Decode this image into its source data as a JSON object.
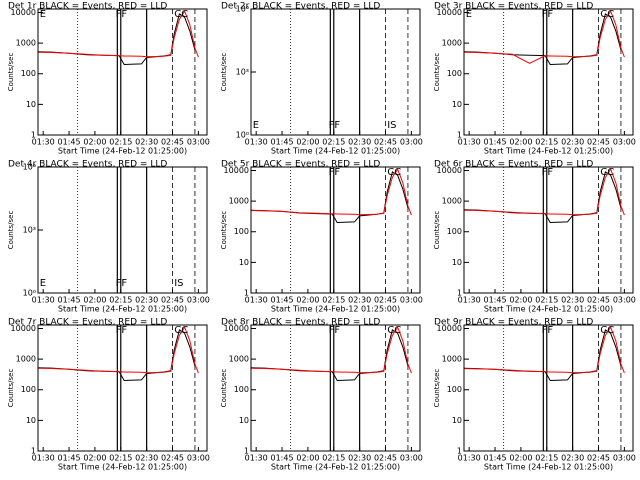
{
  "chart_data": [
    {
      "type": "line",
      "title": "Det 1r BLACK = Events, RED = LLD",
      "xlabel": "Start Time (24-Feb-12 01:25:00)",
      "ylabel": "Counts/sec",
      "log": true,
      "xlim": [
        "01:27",
        "03:05"
      ],
      "xticks": [
        "01:30",
        "01:45",
        "02:00",
        "02:15",
        "02:30",
        "02:45",
        "03:00"
      ],
      "ylim": [
        1,
        13000
      ],
      "yticks": [
        1,
        10,
        100,
        1000,
        10000
      ],
      "x": [
        "01:27",
        "01:35",
        "01:45",
        "01:55",
        "02:05",
        "02:14",
        "02:17",
        "02:27",
        "02:30",
        "02:40",
        "02:44",
        "02:46",
        "02:49",
        "02:52",
        "02:55",
        "02:58",
        "03:00"
      ],
      "series": [
        {
          "name": "BLACK = Events",
          "color": "#000000",
          "values": [
            520,
            510,
            470,
            420,
            400,
            390,
            200,
            210,
            340,
            380,
            420,
            2000,
            9000,
            7000,
            2500,
            600,
            null
          ]
        },
        {
          "name": "RED = LLD",
          "color": "#ff0000",
          "values": [
            500,
            495,
            470,
            430,
            400,
            385,
            380,
            370,
            360,
            370,
            400,
            1500,
            6000,
            11000,
            4000,
            700,
            350
          ]
        }
      ],
      "vlines": [
        {
          "x": "01:50",
          "style": "dotted"
        },
        {
          "x": "02:13",
          "style": "solid"
        },
        {
          "x": "02:15",
          "style": "solid"
        },
        {
          "x": "02:30",
          "style": "solid"
        },
        {
          "x": "02:45",
          "style": "dashed"
        },
        {
          "x": "02:58",
          "style": "dashed"
        }
      ],
      "annotations": [
        {
          "text": "E",
          "x": "01:28",
          "pos": "top"
        },
        {
          "text": "FF",
          "x": "02:12",
          "pos": "top"
        },
        {
          "text": "CC",
          "x": "02:46",
          "pos": "top"
        }
      ]
    },
    {
      "type": "line",
      "title": "Det 2r BLACK = Events, RED = LLD",
      "xlabel": "Start Time (24-Feb-12 01:25:00)",
      "ylabel": "Counts/sec",
      "log": true,
      "xlim": [
        "01:27",
        "03:05"
      ],
      "xticks": [
        "01:30",
        "01:45",
        "02:00",
        "02:15",
        "02:30",
        "02:45",
        "03:00"
      ],
      "ylim": [
        1,
        1000000
      ],
      "yticks": [
        {
          "value": 1,
          "label": "10⁰"
        },
        {
          "value": 1000,
          "label": "10³"
        },
        {
          "value": 1000000,
          "label": "10⁶"
        }
      ],
      "x": [],
      "series": [],
      "vlines": [
        {
          "x": "01:50",
          "style": "dotted"
        },
        {
          "x": "02:13",
          "style": "solid"
        },
        {
          "x": "02:15",
          "style": "solid"
        },
        {
          "x": "02:30",
          "style": "solid"
        },
        {
          "x": "02:45",
          "style": "dashed"
        },
        {
          "x": "02:58",
          "style": "dashed"
        }
      ],
      "annotations": [
        {
          "text": "E",
          "x": "01:28",
          "pos": "bottom"
        },
        {
          "text": "FF",
          "x": "02:12",
          "pos": "bottom"
        },
        {
          "text": "IS",
          "x": "02:46",
          "pos": "bottom"
        }
      ]
    },
    {
      "type": "line",
      "title": "Det 3r BLACK = Events, RED = LLD",
      "xlabel": "Start Time (24-Feb-12 01:25:00)",
      "ylabel": "Counts/sec",
      "log": true,
      "xlim": [
        "01:27",
        "03:05"
      ],
      "xticks": [
        "01:30",
        "01:45",
        "02:00",
        "02:15",
        "02:30",
        "02:45",
        "03:00"
      ],
      "ylim": [
        1,
        13000
      ],
      "yticks": [
        1,
        10,
        100,
        1000,
        10000
      ],
      "x": [
        "01:27",
        "01:35",
        "01:45",
        "01:55",
        "02:05",
        "02:14",
        "02:17",
        "02:27",
        "02:30",
        "02:40",
        "02:44",
        "02:46",
        "02:49",
        "02:52",
        "02:55",
        "02:58",
        "03:00"
      ],
      "series": [
        {
          "name": "BLACK = Events",
          "color": "#000000",
          "values": [
            520,
            510,
            470,
            420,
            400,
            390,
            200,
            210,
            340,
            380,
            420,
            2000,
            9000,
            7000,
            2500,
            600,
            null
          ]
        },
        {
          "name": "RED = LLD",
          "color": "#ff0000",
          "values": [
            500,
            495,
            470,
            430,
            220,
            385,
            380,
            370,
            360,
            370,
            400,
            1500,
            6000,
            11000,
            4000,
            700,
            350
          ]
        }
      ],
      "vlines": [
        {
          "x": "01:50",
          "style": "dotted"
        },
        {
          "x": "02:13",
          "style": "solid"
        },
        {
          "x": "02:15",
          "style": "solid"
        },
        {
          "x": "02:30",
          "style": "solid"
        },
        {
          "x": "02:45",
          "style": "dashed"
        },
        {
          "x": "02:58",
          "style": "dashed"
        }
      ],
      "annotations": [
        {
          "text": "E",
          "x": "01:28",
          "pos": "top"
        },
        {
          "text": "FF",
          "x": "02:12",
          "pos": "top"
        },
        {
          "text": "CC",
          "x": "02:46",
          "pos": "top"
        }
      ]
    },
    {
      "type": "line",
      "title": "Det 4r BLACK = Events, RED = LLD",
      "xlabel": "Start Time (24-Feb-12 01:25:00)",
      "ylabel": "Counts/sec",
      "log": true,
      "xlim": [
        "01:27",
        "03:05"
      ],
      "xticks": [
        "01:30",
        "01:45",
        "02:00",
        "02:15",
        "02:30",
        "02:45",
        "03:00"
      ],
      "ylim": [
        1,
        1000000
      ],
      "yticks": [
        {
          "value": 1,
          "label": "10⁰"
        },
        {
          "value": 1000,
          "label": "10³"
        },
        {
          "value": 1000000,
          "label": "10⁶"
        }
      ],
      "x": [],
      "series": [],
      "vlines": [
        {
          "x": "01:50",
          "style": "dotted"
        },
        {
          "x": "02:13",
          "style": "solid"
        },
        {
          "x": "02:15",
          "style": "solid"
        },
        {
          "x": "02:30",
          "style": "solid"
        },
        {
          "x": "02:45",
          "style": "dashed"
        },
        {
          "x": "02:58",
          "style": "dashed"
        }
      ],
      "annotations": [
        {
          "text": "E",
          "x": "01:28",
          "pos": "bottom"
        },
        {
          "text": "FF",
          "x": "02:12",
          "pos": "bottom"
        },
        {
          "text": "IS",
          "x": "02:46",
          "pos": "bottom"
        }
      ]
    },
    {
      "type": "line",
      "title": "Det 5r BLACK = Events, RED = LLD",
      "xlabel": "Start Time (24-Feb-12 01:25:00)",
      "ylabel": "Counts/sec",
      "log": true,
      "xlim": [
        "01:27",
        "03:05"
      ],
      "xticks": [
        "01:30",
        "01:45",
        "02:00",
        "02:15",
        "02:30",
        "02:45",
        "03:00"
      ],
      "ylim": [
        1,
        13000
      ],
      "yticks": [
        1,
        10,
        100,
        1000,
        10000
      ],
      "x": [
        "01:27",
        "01:35",
        "01:45",
        "01:55",
        "02:05",
        "02:14",
        "02:17",
        "02:27",
        "02:30",
        "02:40",
        "02:44",
        "02:46",
        "02:49",
        "02:52",
        "02:55",
        "02:58",
        "03:00"
      ],
      "series": [
        {
          "name": "BLACK = Events",
          "color": "#000000",
          "values": [
            500,
            490,
            460,
            410,
            390,
            380,
            200,
            210,
            330,
            370,
            410,
            2000,
            9000,
            7000,
            2500,
            600,
            null
          ]
        },
        {
          "name": "RED = LLD",
          "color": "#ff0000",
          "values": [
            490,
            480,
            460,
            420,
            400,
            385,
            380,
            370,
            360,
            370,
            400,
            1500,
            6000,
            11000,
            4000,
            700,
            350
          ]
        }
      ],
      "vlines": [
        {
          "x": "01:50",
          "style": "dotted"
        },
        {
          "x": "02:13",
          "style": "solid"
        },
        {
          "x": "02:15",
          "style": "solid"
        },
        {
          "x": "02:30",
          "style": "solid"
        },
        {
          "x": "02:45",
          "style": "dashed"
        },
        {
          "x": "02:58",
          "style": "dashed"
        }
      ],
      "annotations": [
        {
          "text": "FF",
          "x": "02:12",
          "pos": "top"
        },
        {
          "text": "CC",
          "x": "02:46",
          "pos": "top"
        }
      ]
    },
    {
      "type": "line",
      "title": "Det 6r BLACK = Events, RED = LLD",
      "xlabel": "Start Time (24-Feb-12 01:25:00)",
      "ylabel": "Counts/sec",
      "log": true,
      "xlim": [
        "01:27",
        "03:05"
      ],
      "xticks": [
        "01:30",
        "01:45",
        "02:00",
        "02:15",
        "02:30",
        "02:45",
        "03:00"
      ],
      "ylim": [
        1,
        13000
      ],
      "yticks": [
        1,
        10,
        100,
        1000,
        10000
      ],
      "x": [
        "01:27",
        "01:35",
        "01:45",
        "01:55",
        "02:05",
        "02:14",
        "02:17",
        "02:27",
        "02:30",
        "02:40",
        "02:44",
        "02:46",
        "02:49",
        "02:52",
        "02:55",
        "02:58",
        "03:00"
      ],
      "series": [
        {
          "name": "BLACK = Events",
          "color": "#000000",
          "values": [
            520,
            510,
            470,
            420,
            400,
            390,
            200,
            210,
            340,
            380,
            420,
            2000,
            9000,
            7000,
            2500,
            600,
            null
          ]
        },
        {
          "name": "RED = LLD",
          "color": "#ff0000",
          "values": [
            500,
            495,
            470,
            430,
            400,
            385,
            380,
            370,
            360,
            370,
            400,
            1500,
            6000,
            11000,
            4000,
            700,
            350
          ]
        }
      ],
      "vlines": [
        {
          "x": "01:50",
          "style": "dotted"
        },
        {
          "x": "02:13",
          "style": "solid"
        },
        {
          "x": "02:15",
          "style": "solid"
        },
        {
          "x": "02:30",
          "style": "solid"
        },
        {
          "x": "02:45",
          "style": "dashed"
        },
        {
          "x": "02:58",
          "style": "dashed"
        }
      ],
      "annotations": [
        {
          "text": "FF",
          "x": "02:12",
          "pos": "top"
        },
        {
          "text": "CC",
          "x": "02:46",
          "pos": "top"
        }
      ]
    },
    {
      "type": "line",
      "title": "Det 7r BLACK = Events, RED = LLD",
      "xlabel": "Start Time (24-Feb-12 01:25:00)",
      "ylabel": "Counts/sec",
      "log": true,
      "xlim": [
        "01:27",
        "03:05"
      ],
      "xticks": [
        "01:30",
        "01:45",
        "02:00",
        "02:15",
        "02:30",
        "02:45",
        "03:00"
      ],
      "ylim": [
        1,
        13000
      ],
      "yticks": [
        1,
        10,
        100,
        1000,
        10000
      ],
      "x": [
        "01:27",
        "01:35",
        "01:45",
        "01:55",
        "02:05",
        "02:14",
        "02:17",
        "02:27",
        "02:30",
        "02:40",
        "02:44",
        "02:46",
        "02:49",
        "02:52",
        "02:55",
        "02:58",
        "03:00"
      ],
      "series": [
        {
          "name": "BLACK = Events",
          "color": "#000000",
          "values": [
            520,
            510,
            470,
            420,
            400,
            390,
            200,
            210,
            340,
            380,
            420,
            2000,
            9000,
            7000,
            2500,
            600,
            null
          ]
        },
        {
          "name": "RED = LLD",
          "color": "#ff0000",
          "values": [
            500,
            495,
            470,
            430,
            400,
            385,
            380,
            370,
            360,
            370,
            400,
            1500,
            6000,
            11000,
            4000,
            700,
            350
          ]
        }
      ],
      "vlines": [
        {
          "x": "01:50",
          "style": "dotted"
        },
        {
          "x": "02:13",
          "style": "solid"
        },
        {
          "x": "02:15",
          "style": "solid"
        },
        {
          "x": "02:30",
          "style": "solid"
        },
        {
          "x": "02:45",
          "style": "dashed"
        },
        {
          "x": "02:58",
          "style": "dashed"
        }
      ],
      "annotations": [
        {
          "text": "FF",
          "x": "02:12",
          "pos": "top"
        },
        {
          "text": "CC",
          "x": "02:46",
          "pos": "top"
        }
      ]
    },
    {
      "type": "line",
      "title": "Det 8r BLACK = Events, RED = LLD",
      "xlabel": "Start Time (24-Feb-12 01:25:00)",
      "ylabel": "Counts/sec",
      "log": true,
      "xlim": [
        "01:27",
        "03:05"
      ],
      "xticks": [
        "01:30",
        "01:45",
        "02:00",
        "02:15",
        "02:30",
        "02:45",
        "03:00"
      ],
      "ylim": [
        1,
        13000
      ],
      "yticks": [
        1,
        10,
        100,
        1000,
        10000
      ],
      "x": [
        "01:27",
        "01:35",
        "01:45",
        "01:55",
        "02:05",
        "02:14",
        "02:17",
        "02:27",
        "02:30",
        "02:40",
        "02:44",
        "02:46",
        "02:49",
        "02:52",
        "02:55",
        "02:58",
        "03:00"
      ],
      "series": [
        {
          "name": "BLACK = Events",
          "color": "#000000",
          "values": [
            520,
            510,
            470,
            420,
            400,
            390,
            200,
            210,
            340,
            380,
            420,
            2000,
            9000,
            7000,
            2500,
            600,
            null
          ]
        },
        {
          "name": "RED = LLD",
          "color": "#ff0000",
          "values": [
            500,
            495,
            470,
            430,
            400,
            385,
            380,
            370,
            360,
            370,
            400,
            1500,
            6000,
            11000,
            4000,
            700,
            350
          ]
        }
      ],
      "vlines": [
        {
          "x": "01:50",
          "style": "dotted"
        },
        {
          "x": "02:13",
          "style": "solid"
        },
        {
          "x": "02:15",
          "style": "solid"
        },
        {
          "x": "02:30",
          "style": "solid"
        },
        {
          "x": "02:45",
          "style": "dashed"
        },
        {
          "x": "02:58",
          "style": "dashed"
        }
      ],
      "annotations": [
        {
          "text": "FF",
          "x": "02:12",
          "pos": "top"
        },
        {
          "text": "CC",
          "x": "02:46",
          "pos": "top"
        }
      ]
    },
    {
      "type": "line",
      "title": "Det 9r BLACK = Events, RED = LLD",
      "xlabel": "Start Time (24-Feb-12 01:25:00)",
      "ylabel": "Counts/sec",
      "log": true,
      "xlim": [
        "01:27",
        "03:05"
      ],
      "xticks": [
        "01:30",
        "01:45",
        "02:00",
        "02:15",
        "02:30",
        "02:45",
        "03:00"
      ],
      "ylim": [
        1,
        13000
      ],
      "yticks": [
        1,
        10,
        100,
        1000,
        10000
      ],
      "x": [
        "01:27",
        "01:35",
        "01:45",
        "01:55",
        "02:05",
        "02:14",
        "02:17",
        "02:27",
        "02:30",
        "02:40",
        "02:44",
        "02:46",
        "02:49",
        "02:52",
        "02:55",
        "02:58",
        "03:00"
      ],
      "series": [
        {
          "name": "BLACK = Events",
          "color": "#000000",
          "values": [
            500,
            490,
            460,
            420,
            400,
            390,
            200,
            210,
            340,
            380,
            420,
            2000,
            9000,
            7000,
            2500,
            600,
            null
          ]
        },
        {
          "name": "RED = LLD",
          "color": "#ff0000",
          "values": [
            490,
            480,
            465,
            430,
            400,
            385,
            380,
            370,
            360,
            370,
            400,
            1500,
            6000,
            11000,
            4000,
            700,
            350
          ]
        }
      ],
      "vlines": [
        {
          "x": "01:50",
          "style": "dotted"
        },
        {
          "x": "02:13",
          "style": "solid"
        },
        {
          "x": "02:15",
          "style": "solid"
        },
        {
          "x": "02:30",
          "style": "solid"
        },
        {
          "x": "02:45",
          "style": "dashed"
        },
        {
          "x": "02:58",
          "style": "dashed"
        }
      ],
      "annotations": [
        {
          "text": "FF",
          "x": "02:12",
          "pos": "top"
        },
        {
          "text": "CC",
          "x": "02:46",
          "pos": "top"
        }
      ]
    }
  ]
}
